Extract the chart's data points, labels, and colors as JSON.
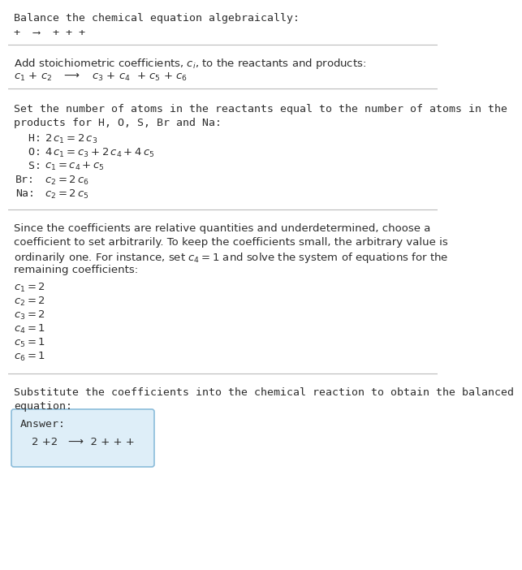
{
  "title": "Balance the chemical equation algebraically:",
  "line1": "+  ⟶  + + +",
  "section1_label": "Add stoichiometric coefficients, $c_i$, to the reactants and products:",
  "line2_parts": [
    "c_1",
    " +",
    "c_2",
    "  ⟶",
    "c_3",
    " +",
    "c_4",
    "  +",
    "c_5",
    " +",
    "c_6"
  ],
  "section2_title_l1": "Set the number of atoms in the reactants equal to the number of atoms in the",
  "section2_title_l2": "products for H, O, S, Br and Na:",
  "equations": [
    [
      "  H:",
      "2\\,c_1 = 2\\,c_3"
    ],
    [
      "  O:",
      "4\\,c_1 = c_3 + 2\\,c_4 + 4\\,c_5"
    ],
    [
      "  S:",
      "c_1 = c_4 + c_5"
    ],
    [
      "Br:",
      "c_2 = 2\\,c_6"
    ],
    [
      "Na:",
      "c_2 = 2\\,c_5"
    ]
  ],
  "section3_l1": "Since the coefficients are relative quantities and underdetermined, choose a",
  "section3_l2": "coefficient to set arbitrarily. To keep the coefficients small, the arbitrary value is",
  "section3_l3": "ordinarily one. For instance, set $c_4 = 1$ and solve the system of equations for the",
  "section3_l4": "remaining coefficients:",
  "solution": [
    "c_1 = 2",
    "c_2 = 2",
    "c_3 = 2",
    "c_4 = 1",
    "c_5 = 1",
    "c_6 = 1"
  ],
  "section4_l1": "Substitute the coefficients into the chemical reaction to obtain the balanced",
  "section4_l2": "equation:",
  "answer_label": "Answer:",
  "answer_eq": "2 +2   ⟶  2 + + +",
  "bg_color": "#ffffff",
  "text_color": "#2d2d2d",
  "line_color": "#bbbbbb",
  "answer_box_bg": "#deeef8",
  "answer_box_border": "#8bbcda",
  "font_size": 9.0,
  "mono_font": "DejaVu Sans Mono"
}
